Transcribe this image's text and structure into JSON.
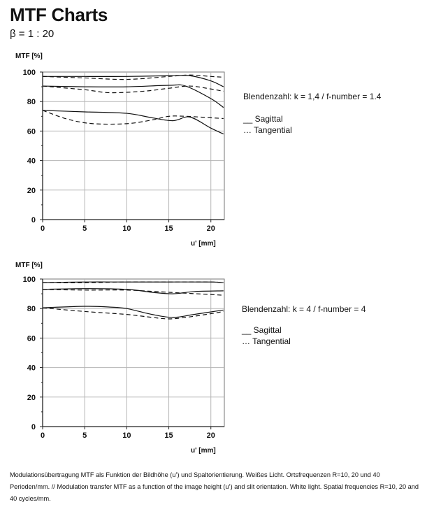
{
  "header": {
    "title": "MTF Charts",
    "subtitle": "β = 1 : 20"
  },
  "legend": {
    "sagittal": "__ Sagittal",
    "tangential": "… Tangential"
  },
  "caption": "Modulationsübertragung MTF als Funktion  der Bildhöhe (u’) und Spaltorientierung. Weißes Licht. Ortsfrequenzen R=10, 20 und 40 Perioden/mm. // Modulation transfer MTF as a function of the image height (u’) and slit orientation.  White light. Spatial frequencies R=10, 20 and 40 cycles/mm.",
  "chart_data": [
    {
      "type": "line",
      "aperture_label": "Blendenzahl: k = 1,4 / f-number = 1.4",
      "ylabel": "MTF [%]",
      "xlabel": "u' [mm]",
      "xlim": [
        0,
        21.6
      ],
      "ylim": [
        0,
        100
      ],
      "xticks": [
        0,
        5,
        10,
        15,
        20
      ],
      "yticks": [
        0,
        20,
        40,
        60,
        80,
        100
      ],
      "grid": true,
      "series": [
        {
          "style": "solid",
          "x": [
            0,
            5,
            10,
            15,
            17.5,
            20,
            21.5
          ],
          "y": [
            97,
            97,
            97,
            97.5,
            97.5,
            94,
            90
          ]
        },
        {
          "style": "dashed",
          "x": [
            0,
            5,
            10,
            15,
            17.5,
            20,
            21.5
          ],
          "y": [
            97,
            96,
            95,
            97,
            98,
            97,
            96.5
          ]
        },
        {
          "style": "solid",
          "x": [
            0,
            5,
            10,
            15,
            17,
            20,
            21.5
          ],
          "y": [
            90.5,
            90,
            90,
            91,
            90.5,
            82,
            76
          ]
        },
        {
          "style": "dashed",
          "x": [
            0,
            5,
            8,
            12,
            15,
            17.5,
            20,
            21.5
          ],
          "y": [
            90.5,
            88,
            86,
            87,
            89,
            90.5,
            88.5,
            87
          ]
        },
        {
          "style": "solid",
          "x": [
            0,
            5,
            10,
            13,
            15.5,
            17.5,
            20,
            21.5
          ],
          "y": [
            74,
            73,
            72,
            69,
            67,
            69.5,
            62,
            58
          ]
        },
        {
          "style": "dashed",
          "x": [
            0,
            3,
            6,
            10,
            13,
            15,
            17,
            20,
            21.5
          ],
          "y": [
            74,
            68,
            65,
            65,
            67.5,
            70,
            70,
            69,
            68.5
          ]
        }
      ]
    },
    {
      "type": "line",
      "aperture_label": "Blendenzahl: k = 4 / f-number = 4",
      "ylabel": "MTF [%]",
      "xlabel": "u' [mm]",
      "xlim": [
        0,
        21.6
      ],
      "ylim": [
        0,
        100
      ],
      "xticks": [
        0,
        5,
        10,
        15,
        20
      ],
      "yticks": [
        0,
        20,
        40,
        60,
        80,
        100
      ],
      "grid": true,
      "series": [
        {
          "style": "solid",
          "x": [
            0,
            5,
            10,
            15,
            20,
            21.5
          ],
          "y": [
            97.5,
            98,
            98,
            98,
            98,
            97.5
          ]
        },
        {
          "style": "dashed",
          "x": [
            0,
            5,
            10,
            15,
            20,
            21.5
          ],
          "y": [
            97.5,
            97.5,
            98,
            98,
            98,
            97.5
          ]
        },
        {
          "style": "solid",
          "x": [
            0,
            5,
            10,
            13,
            15.5,
            18,
            21.5
          ],
          "y": [
            93,
            93.5,
            93,
            91,
            90,
            91.5,
            92
          ]
        },
        {
          "style": "dashed",
          "x": [
            0,
            5,
            10,
            15,
            20,
            21.5
          ],
          "y": [
            93,
            92.5,
            92.5,
            91,
            89.5,
            89
          ]
        },
        {
          "style": "solid",
          "x": [
            0,
            5,
            8,
            10,
            13,
            15.5,
            18,
            21.5
          ],
          "y": [
            80.5,
            81.5,
            81,
            80,
            76,
            74,
            76,
            79
          ]
        },
        {
          "style": "dashed",
          "x": [
            0,
            5,
            10,
            13,
            15,
            17,
            20,
            21.5
          ],
          "y": [
            80.5,
            78,
            76,
            74,
            73,
            74,
            76.5,
            78
          ]
        }
      ]
    }
  ]
}
